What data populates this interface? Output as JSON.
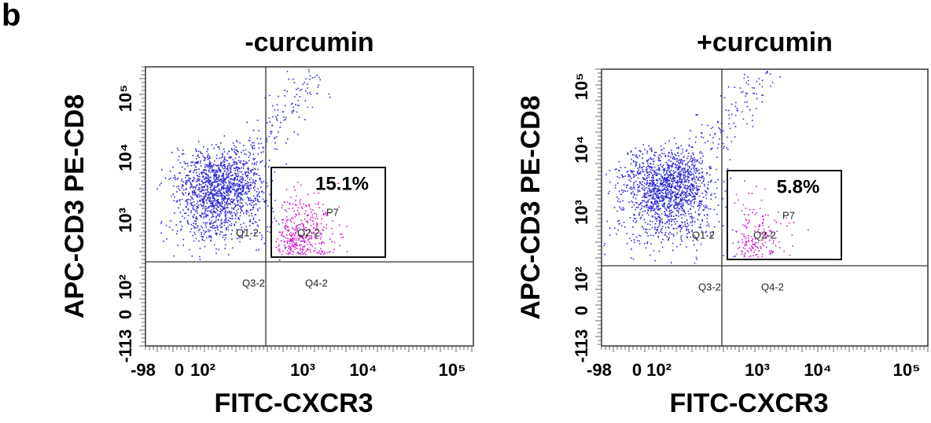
{
  "panel_label": "b",
  "plots": [
    {
      "title": "-curcumin",
      "x_label": "FITC-CXCR3",
      "y_label": "APC-CD3 PE-CD8",
      "xticks": [
        "-98",
        "0",
        "10²",
        "10³",
        "10⁴",
        "10⁵"
      ],
      "yticks": [
        "10⁵",
        "10⁴",
        "10³",
        "10²",
        "0",
        "-113"
      ],
      "quadrants": [
        "Q1-2",
        "Q2-2",
        "Q3-2",
        "Q4-2"
      ],
      "gate": "P7",
      "gate_percent": "15.1%"
    },
    {
      "title": "+curcumin",
      "x_label": "FITC-CXCR3",
      "y_label": "APC-CD3 PE-CD8",
      "xticks": [
        "-98",
        "0",
        "10²",
        "10³",
        "10⁴",
        "10⁵"
      ],
      "yticks": [
        "10⁵",
        "10⁴",
        "10³",
        "10²",
        "0",
        "-113"
      ],
      "quadrants": [
        "Q1-2",
        "Q2-2",
        "Q3-2",
        "Q4-2"
      ],
      "gate": "P7",
      "gate_percent": "5.8%"
    }
  ]
}
